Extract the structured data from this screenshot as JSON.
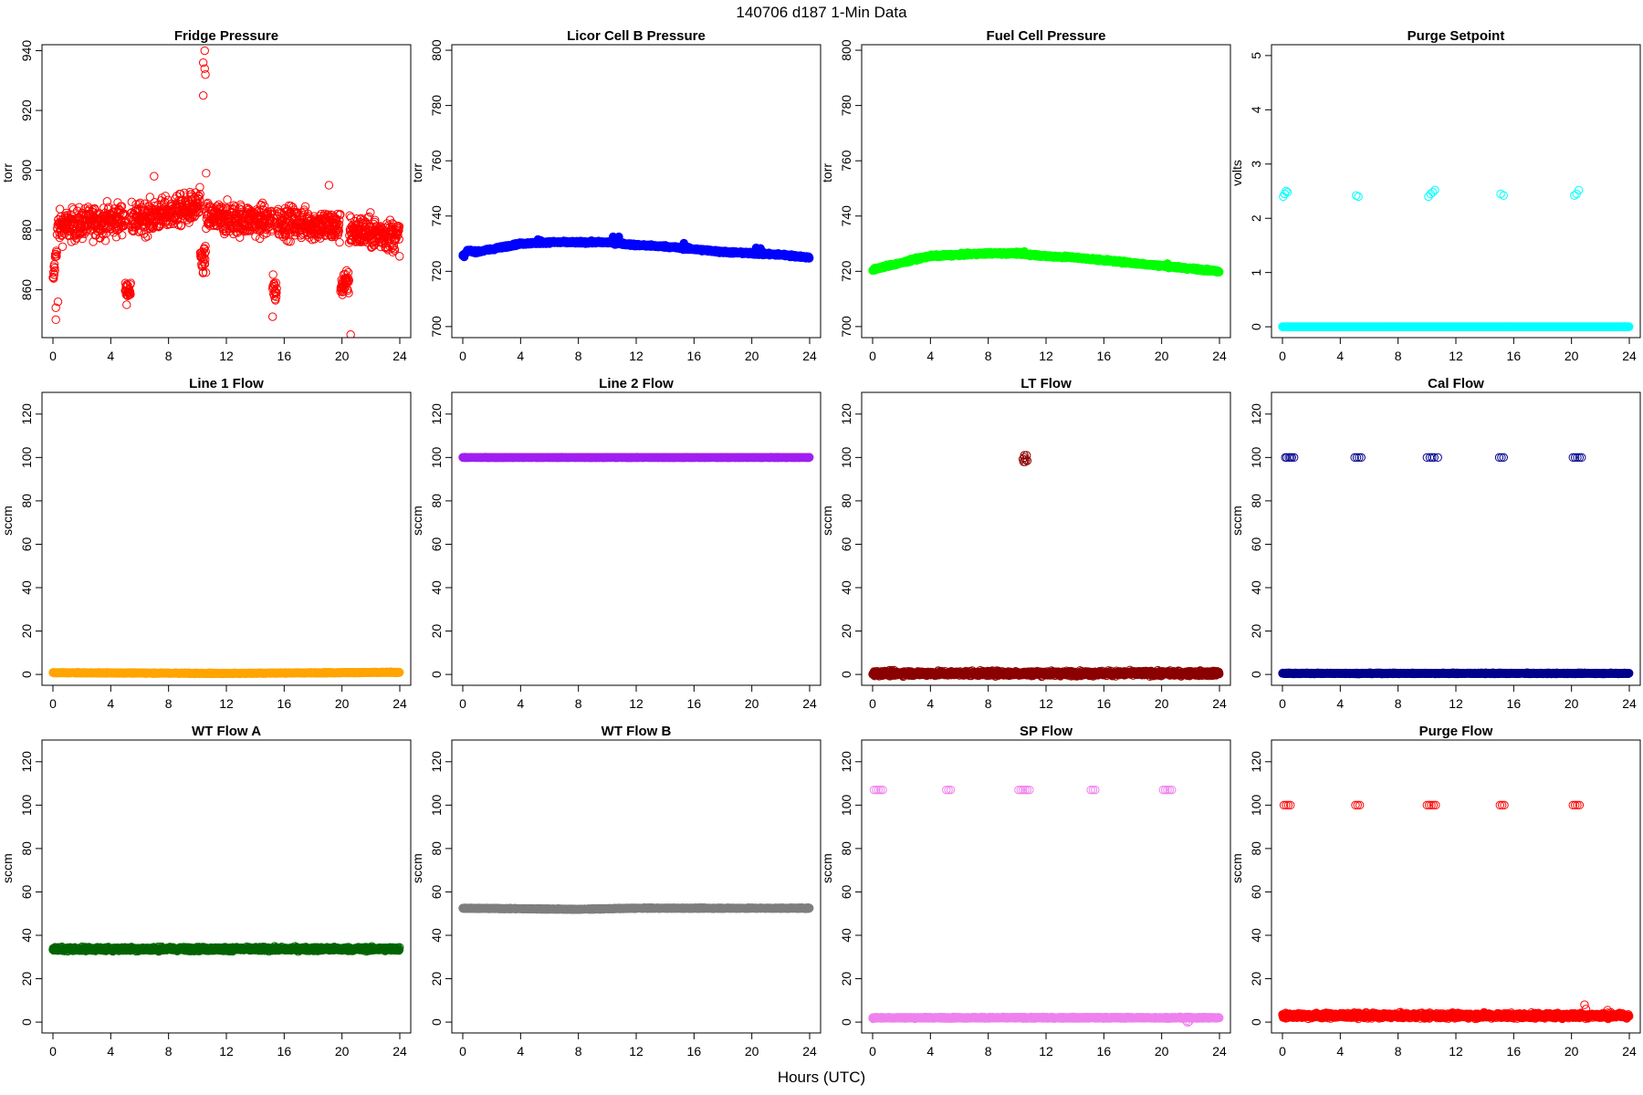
{
  "figure": {
    "title": "140706   d187   1-Min Data",
    "xlabel": "Hours (UTC)"
  },
  "chart_data": [
    {
      "type": "scatter",
      "title": "Fridge Pressure",
      "ylabel": "torr",
      "color": "#ff0000",
      "filled": false,
      "xlim": [
        0,
        24
      ],
      "ylim": [
        844,
        942
      ],
      "xticks": [
        0,
        4,
        8,
        12,
        16,
        20,
        24
      ],
      "yticks": [
        860,
        880,
        900,
        920,
        940
      ],
      "series": [
        {
          "pattern": "noise",
          "segments": [
            {
              "from": 0,
              "to": 0.3,
              "base": 862,
              "end": 877,
              "noise": 7
            },
            {
              "from": 0.3,
              "to": 5,
              "base": 881,
              "end": 884,
              "noise": 9
            },
            {
              "from": 5,
              "to": 5.4,
              "base": 860,
              "noise": 4
            },
            {
              "from": 5.4,
              "to": 10.2,
              "base": 883,
              "end": 888,
              "noise": 9
            },
            {
              "from": 10.2,
              "to": 10.6,
              "base": 870,
              "noise": 10
            },
            {
              "from": 10.6,
              "to": 15.2,
              "base": 884,
              "end": 883,
              "noise": 9
            },
            {
              "from": 15.2,
              "to": 15.5,
              "base": 860,
              "noise": 8
            },
            {
              "from": 15.5,
              "to": 19.9,
              "base": 883,
              "end": 881,
              "noise": 9
            },
            {
              "from": 19.9,
              "to": 20.5,
              "base": 862,
              "noise": 8
            },
            {
              "from": 20.5,
              "to": 24,
              "base": 880,
              "end": 878,
              "noise": 9
            }
          ],
          "extra": [
            [
              0.2,
              850
            ],
            [
              0.2,
              854
            ],
            [
              0.35,
              856
            ],
            [
              10.4,
              936
            ],
            [
              10.5,
              934
            ],
            [
              10.5,
              940
            ],
            [
              10.4,
              925
            ],
            [
              10.55,
              932
            ],
            [
              10.6,
              899
            ],
            [
              19.1,
              895
            ],
            [
              7.0,
              898
            ],
            [
              20.6,
              845
            ],
            [
              5.1,
              855
            ],
            [
              15.2,
              851
            ]
          ]
        }
      ]
    },
    {
      "type": "scatter",
      "title": "Licor Cell B Pressure",
      "ylabel": "torr",
      "color": "#0000ff",
      "filled": true,
      "xlim": [
        0,
        24
      ],
      "ylim": [
        696,
        802
      ],
      "xticks": [
        0,
        4,
        8,
        12,
        16,
        20,
        24
      ],
      "yticks": [
        700,
        720,
        740,
        760,
        780,
        800
      ],
      "series": [
        {
          "pattern": "curve",
          "points": [
            [
              0,
              725.5
            ],
            [
              0.4,
              727.5
            ],
            [
              1,
              727
            ],
            [
              2,
              728
            ],
            [
              3,
              729
            ],
            [
              4,
              730
            ],
            [
              6,
              730.5
            ],
            [
              8,
              730.5
            ],
            [
              10,
              730.5
            ],
            [
              11,
              730
            ],
            [
              12,
              729.5
            ],
            [
              14,
              729
            ],
            [
              16,
              728
            ],
            [
              18,
              727
            ],
            [
              20,
              726.5
            ],
            [
              22,
              726
            ],
            [
              24,
              725
            ]
          ],
          "noise": 0.4,
          "extra": [
            [
              5.2,
              731.5
            ],
            [
              5.4,
              731.2
            ],
            [
              10.4,
              732.5
            ],
            [
              10.8,
              732.5
            ],
            [
              15.3,
              730.2
            ],
            [
              20.3,
              728.5
            ],
            [
              20.6,
              728.3
            ],
            [
              0.1,
              725.2
            ]
          ]
        }
      ]
    },
    {
      "type": "scatter",
      "title": "Fuel Cell Pressure",
      "ylabel": "torr",
      "color": "#00ff00",
      "filled": true,
      "xlim": [
        0,
        24
      ],
      "ylim": [
        696,
        802
      ],
      "xticks": [
        0,
        4,
        8,
        12,
        16,
        20,
        24
      ],
      "yticks": [
        700,
        720,
        740,
        760,
        780,
        800
      ],
      "series": [
        {
          "pattern": "curve",
          "points": [
            [
              0,
              720.5
            ],
            [
              1,
              722
            ],
            [
              2,
              723
            ],
            [
              3,
              724.5
            ],
            [
              4,
              725.5
            ],
            [
              6,
              726
            ],
            [
              8,
              726.5
            ],
            [
              10,
              726.5
            ],
            [
              11,
              726
            ],
            [
              12,
              725.5
            ],
            [
              14,
              725
            ],
            [
              16,
              724
            ],
            [
              18,
              723
            ],
            [
              20,
              722
            ],
            [
              22,
              721
            ],
            [
              24,
              720
            ]
          ],
          "noise": 0.4,
          "extra": [
            [
              5.3,
              726.2
            ],
            [
              10.5,
              727.2
            ],
            [
              20.4,
              722.8
            ]
          ]
        }
      ]
    },
    {
      "type": "scatter",
      "title": "Purge Setpoint",
      "ylabel": "volts",
      "color": "#00ffff",
      "filled": false,
      "xlim": [
        0,
        24
      ],
      "ylim": [
        -0.2,
        5.2
      ],
      "xticks": [
        0,
        4,
        8,
        12,
        16,
        20,
        24
      ],
      "yticks": [
        0,
        1,
        2,
        3,
        4,
        5
      ],
      "series": [
        {
          "pattern": "line",
          "value": 0,
          "noise": 0,
          "extra": [
            [
              0.05,
              2.4
            ],
            [
              0.15,
              2.45
            ],
            [
              0.25,
              2.5
            ],
            [
              0.35,
              2.48
            ],
            [
              5.1,
              2.42
            ],
            [
              5.25,
              2.4
            ],
            [
              10.1,
              2.4
            ],
            [
              10.25,
              2.45
            ],
            [
              10.4,
              2.48
            ],
            [
              10.55,
              2.52
            ],
            [
              15.1,
              2.45
            ],
            [
              15.3,
              2.42
            ],
            [
              20.2,
              2.42
            ],
            [
              20.35,
              2.45
            ],
            [
              20.5,
              2.52
            ]
          ]
        }
      ]
    },
    {
      "type": "scatter",
      "title": "Line 1 Flow",
      "ylabel": "sccm",
      "color": "#ffa500",
      "filled": true,
      "xlim": [
        0,
        24
      ],
      "ylim": [
        -5,
        130
      ],
      "xticks": [
        0,
        4,
        8,
        12,
        16,
        20,
        24
      ],
      "yticks": [
        0,
        20,
        40,
        60,
        80,
        100,
        120
      ],
      "series": [
        {
          "pattern": "curve",
          "points": [
            [
              0,
              0.8
            ],
            [
              12,
              0.5
            ],
            [
              24,
              1
            ]
          ],
          "noise": 0.2,
          "extra": []
        }
      ]
    },
    {
      "type": "scatter",
      "title": "Line 2 Flow",
      "ylabel": "sccm",
      "color": "#a020f0",
      "filled": true,
      "xlim": [
        0,
        24
      ],
      "ylim": [
        -5,
        130
      ],
      "xticks": [
        0,
        4,
        8,
        12,
        16,
        20,
        24
      ],
      "yticks": [
        0,
        20,
        40,
        60,
        80,
        100,
        120
      ],
      "series": [
        {
          "pattern": "line",
          "value": 100,
          "noise": 0.1,
          "extra": []
        }
      ]
    },
    {
      "type": "scatter",
      "title": "LT Flow",
      "ylabel": "sccm",
      "color": "#8b0000",
      "filled": false,
      "xlim": [
        0,
        24
      ],
      "ylim": [
        -5,
        130
      ],
      "xticks": [
        0,
        4,
        8,
        12,
        16,
        20,
        24
      ],
      "yticks": [
        0,
        20,
        40,
        60,
        80,
        100,
        120
      ],
      "series": [
        {
          "pattern": "band",
          "value": 0.5,
          "noise": 1.5,
          "extra": [
            [
              10.45,
              98
            ],
            [
              10.5,
              100
            ],
            [
              10.55,
              98
            ],
            [
              10.6,
              99
            ],
            [
              10.65,
              101
            ],
            [
              10.5,
              101
            ],
            [
              10.7,
              98.5
            ],
            [
              10.4,
              99.2
            ]
          ]
        }
      ]
    },
    {
      "type": "scatter",
      "title": "Cal Flow",
      "ylabel": "sccm",
      "color": "#00008b",
      "filled": false,
      "xlim": [
        0,
        24
      ],
      "ylim": [
        -5,
        130
      ],
      "xticks": [
        0,
        4,
        8,
        12,
        16,
        20,
        24
      ],
      "yticks": [
        0,
        20,
        40,
        60,
        80,
        100,
        120
      ],
      "series": [
        {
          "pattern": "band",
          "value": 0.5,
          "noise": 0.3,
          "extra": [
            [
              0.1,
              0.6
            ],
            [
              0.2,
              100
            ],
            [
              0.3,
              100
            ],
            [
              0.45,
              100
            ],
            [
              0.55,
              100
            ],
            [
              0.65,
              100
            ],
            [
              0.8,
              100
            ],
            [
              5.0,
              100
            ],
            [
              5.15,
              100
            ],
            [
              5.3,
              100
            ],
            [
              5.45,
              100
            ],
            [
              10.0,
              100
            ],
            [
              10.2,
              100
            ],
            [
              10.35,
              100
            ],
            [
              10.5,
              100
            ],
            [
              10.75,
              100
            ],
            [
              15.0,
              100
            ],
            [
              15.15,
              100
            ],
            [
              15.3,
              100
            ],
            [
              20.1,
              100
            ],
            [
              20.25,
              100
            ],
            [
              20.4,
              100
            ],
            [
              20.55,
              100
            ],
            [
              20.7,
              100
            ]
          ]
        }
      ]
    },
    {
      "type": "scatter",
      "title": "WT Flow A",
      "ylabel": "sccm",
      "color": "#006400",
      "filled": false,
      "xlim": [
        0,
        24
      ],
      "ylim": [
        -5,
        130
      ],
      "xticks": [
        0,
        4,
        8,
        12,
        16,
        20,
        24
      ],
      "yticks": [
        0,
        20,
        40,
        60,
        80,
        100,
        120
      ],
      "series": [
        {
          "pattern": "band",
          "value": 33.7,
          "noise": 1.2,
          "extra": []
        }
      ]
    },
    {
      "type": "scatter",
      "title": "WT Flow B",
      "ylabel": "sccm",
      "color": "#7f7f7f",
      "filled": true,
      "xlim": [
        0,
        24
      ],
      "ylim": [
        -5,
        130
      ],
      "xticks": [
        0,
        4,
        8,
        12,
        16,
        20,
        24
      ],
      "yticks": [
        0,
        20,
        40,
        60,
        80,
        100,
        120
      ],
      "series": [
        {
          "pattern": "curve",
          "points": [
            [
              0,
              52.5
            ],
            [
              8,
              52
            ],
            [
              12,
              52.5
            ],
            [
              24,
              52.5
            ]
          ],
          "noise": 0.2,
          "extra": []
        }
      ]
    },
    {
      "type": "scatter",
      "title": "SP Flow",
      "ylabel": "sccm",
      "color": "#ee82ee",
      "filled": false,
      "xlim": [
        0,
        24
      ],
      "ylim": [
        -5,
        130
      ],
      "xticks": [
        0,
        4,
        8,
        12,
        16,
        20,
        24
      ],
      "yticks": [
        0,
        20,
        40,
        60,
        80,
        100,
        120
      ],
      "series": [
        {
          "pattern": "line",
          "value": 2,
          "noise": 0.3,
          "extra": [
            [
              0.05,
              1.5
            ],
            [
              0.1,
              107
            ],
            [
              0.25,
              107
            ],
            [
              0.4,
              107
            ],
            [
              0.55,
              107
            ],
            [
              0.7,
              107
            ],
            [
              5.1,
              107
            ],
            [
              5.25,
              107
            ],
            [
              5.4,
              107
            ],
            [
              10.1,
              107
            ],
            [
              10.25,
              107
            ],
            [
              10.4,
              107
            ],
            [
              10.55,
              107
            ],
            [
              10.7,
              107
            ],
            [
              10.85,
              107
            ],
            [
              15.1,
              107
            ],
            [
              15.25,
              107
            ],
            [
              15.4,
              107
            ],
            [
              20.1,
              107
            ],
            [
              20.25,
              107
            ],
            [
              20.4,
              107
            ],
            [
              20.55,
              107
            ],
            [
              20.7,
              107
            ],
            [
              21.7,
              0.5
            ],
            [
              21.8,
              -0.2
            ],
            [
              21.9,
              0.3
            ]
          ]
        }
      ]
    },
    {
      "type": "scatter",
      "title": "Purge Flow",
      "ylabel": "sccm",
      "color": "#ff0000",
      "filled": false,
      "xlim": [
        0,
        24
      ],
      "ylim": [
        -5,
        130
      ],
      "xticks": [
        0,
        4,
        8,
        12,
        16,
        20,
        24
      ],
      "yticks": [
        0,
        20,
        40,
        60,
        80,
        100,
        120
      ],
      "series": [
        {
          "pattern": "band",
          "value": 3,
          "noise": 1.6,
          "extra": [
            [
              0.1,
              100
            ],
            [
              0.25,
              100
            ],
            [
              0.4,
              100
            ],
            [
              0.55,
              100
            ],
            [
              5.05,
              100
            ],
            [
              5.2,
              100
            ],
            [
              5.35,
              100
            ],
            [
              10.0,
              100
            ],
            [
              10.15,
              100
            ],
            [
              10.3,
              100
            ],
            [
              10.45,
              100
            ],
            [
              10.6,
              100
            ],
            [
              15.05,
              100
            ],
            [
              15.2,
              100
            ],
            [
              15.35,
              100
            ],
            [
              20.1,
              100
            ],
            [
              20.25,
              100
            ],
            [
              20.4,
              100
            ],
            [
              20.55,
              100
            ],
            [
              20.9,
              8
            ],
            [
              21.0,
              6
            ],
            [
              22.5,
              5.5
            ]
          ]
        }
      ]
    }
  ]
}
